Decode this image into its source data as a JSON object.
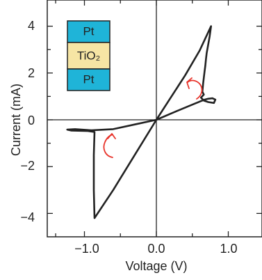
{
  "chart_data": {
    "type": "line",
    "xlabel": "Voltage (V)",
    "ylabel": "Current (mA)",
    "xlim": [
      -1.45,
      1.4
    ],
    "ylim": [
      -5.0,
      5.0
    ],
    "x_ticks": [
      -1.0,
      0.0,
      1.0
    ],
    "x_tick_labels": [
      "−1.0",
      "0.0",
      "1.0"
    ],
    "y_ticks": [
      -4,
      -2,
      0,
      2,
      4
    ],
    "y_tick_labels": [
      "−4",
      "−2",
      "0",
      "2",
      "4"
    ],
    "grid": false,
    "series": [
      {
        "values": [
          [
            0.0,
            0.0
          ],
          [
            0.2,
            0.95
          ],
          [
            0.4,
            1.9
          ],
          [
            0.6,
            2.95
          ],
          [
            0.76,
            4.0
          ],
          [
            0.74,
            3.55
          ],
          [
            0.72,
            3.2
          ],
          [
            0.7,
            2.85
          ],
          [
            0.69,
            2.6
          ],
          [
            0.68,
            2.3
          ],
          [
            0.67,
            2.05
          ],
          [
            0.66,
            1.8
          ],
          [
            0.65,
            1.55
          ],
          [
            0.64,
            1.2
          ],
          [
            0.66,
            1.08
          ],
          [
            0.62,
            0.95
          ],
          [
            0.66,
            0.82
          ],
          [
            0.72,
            0.76
          ],
          [
            0.8,
            0.72
          ],
          [
            0.82,
            0.86
          ],
          [
            0.78,
            0.92
          ],
          [
            0.72,
            0.9
          ],
          [
            0.66,
            0.85
          ],
          [
            0.5,
            0.65
          ],
          [
            0.25,
            0.33
          ],
          [
            0.0,
            0.0
          ],
          [
            -0.3,
            -0.2
          ],
          [
            -0.6,
            -0.4
          ],
          [
            -0.9,
            -0.45
          ],
          [
            -1.13,
            -0.4
          ],
          [
            -1.24,
            -0.42
          ],
          [
            -1.18,
            -0.46
          ],
          [
            -0.95,
            -0.48
          ],
          [
            -0.86,
            -0.52
          ],
          [
            -0.87,
            -1.5
          ],
          [
            -0.87,
            -3.0
          ],
          [
            -0.86,
            -4.2
          ],
          [
            -0.6,
            -3.0
          ],
          [
            -0.3,
            -1.5
          ],
          [
            0.0,
            0.0
          ]
        ]
      }
    ],
    "inset": {
      "layers": [
        "Pt",
        "TiO₂",
        "Pt"
      ],
      "colors": [
        "#1fb4d8",
        "#f6e5a4",
        "#1fb4d8"
      ]
    },
    "arrows": [
      "counterclockwise",
      "clockwise"
    ],
    "colors": {
      "curve": "#222222",
      "arrow": "#e8332a",
      "axis": "#222222"
    }
  }
}
